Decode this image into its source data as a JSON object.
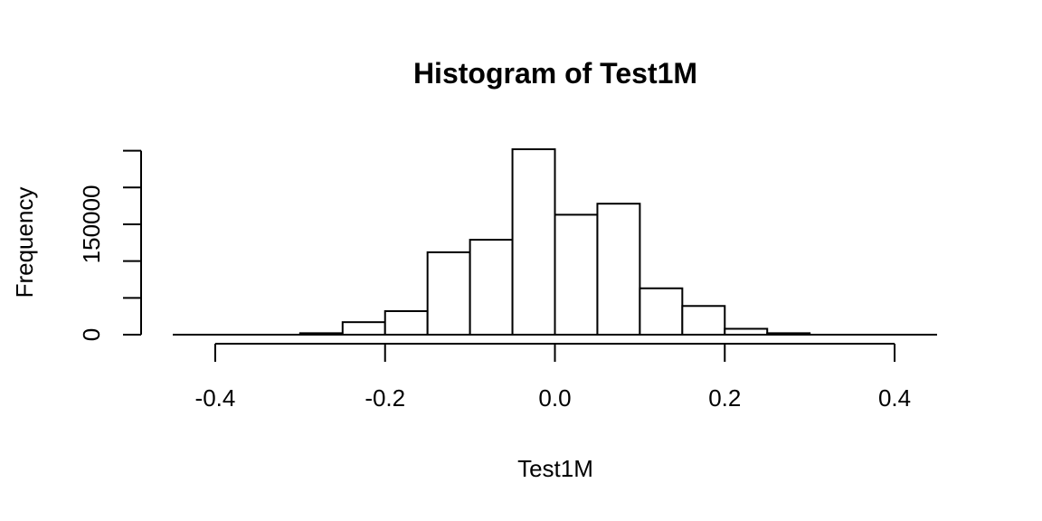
{
  "chart_data": {
    "type": "bar",
    "title": "Histogram of Test1M",
    "xlabel": "Test1M",
    "ylabel": "Frequency",
    "bin_edges": [
      -0.45,
      -0.4,
      -0.35,
      -0.3,
      -0.25,
      -0.2,
      -0.15,
      -0.1,
      -0.05,
      0.0,
      0.05,
      0.1,
      0.15,
      0.2,
      0.25,
      0.3,
      0.35,
      0.4,
      0.45
    ],
    "counts": [
      0,
      0,
      0,
      2000,
      17000,
      32000,
      112000,
      129000,
      252000,
      163000,
      178000,
      63000,
      39000,
      8000,
      2000,
      0,
      0,
      0
    ],
    "xlim": [
      -0.45,
      0.45
    ],
    "ylim": [
      0,
      252000
    ],
    "x_ticks": [
      -0.4,
      -0.2,
      0.0,
      0.2,
      0.4
    ],
    "x_tick_labels": [
      "-0.4",
      "-0.2",
      "0.0",
      "0.2",
      "0.4"
    ],
    "y_ticks": [
      0,
      50000,
      100000,
      150000,
      200000,
      250000
    ],
    "y_tick_labels": [
      "0",
      "",
      "",
      "150000",
      "",
      ""
    ],
    "grid": false,
    "bar_fill": "#ffffff",
    "bar_stroke": "#000000"
  }
}
